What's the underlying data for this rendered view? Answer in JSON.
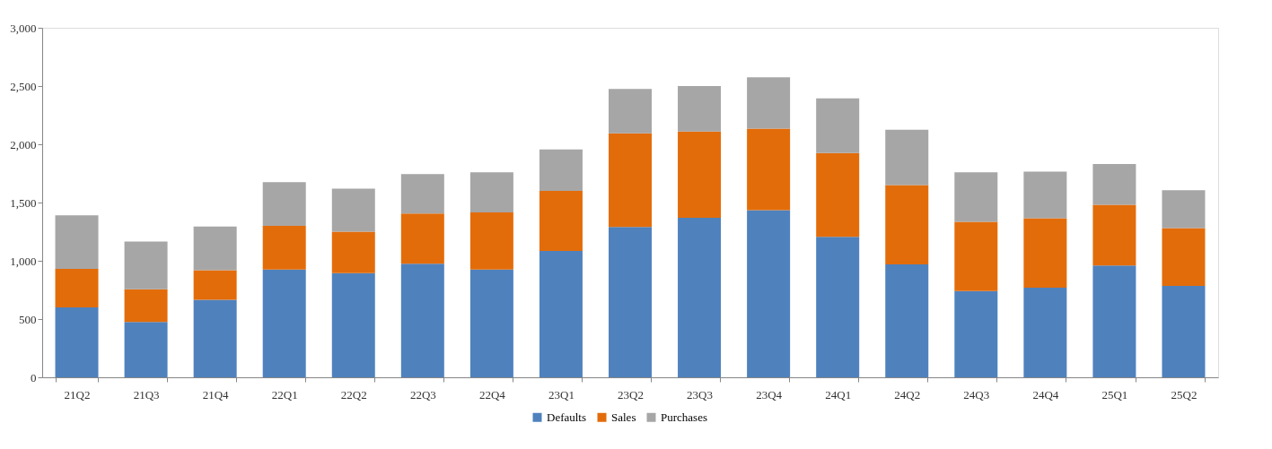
{
  "chart_data": {
    "type": "bar",
    "stacked": true,
    "categories": [
      "21Q2",
      "21Q3",
      "21Q4",
      "22Q1",
      "22Q2",
      "22Q3",
      "22Q4",
      "23Q1",
      "23Q2",
      "23Q3",
      "23Q4",
      "24Q1",
      "24Q2",
      "24Q3",
      "24Q4",
      "25Q1",
      "25Q2"
    ],
    "series": [
      {
        "name": "Defaults",
        "color": "#4f81bd",
        "values": [
          600,
          475,
          665,
          925,
          895,
          975,
          925,
          1085,
          1290,
          1370,
          1435,
          1205,
          970,
          740,
          770,
          960,
          785
        ]
      },
      {
        "name": "Sales",
        "color": "#e36c0a",
        "values": [
          330,
          280,
          255,
          375,
          355,
          430,
          490,
          515,
          805,
          740,
          700,
          720,
          680,
          595,
          595,
          520,
          495
        ]
      },
      {
        "name": "Purchases",
        "color": "#a6a6a6",
        "values": [
          460,
          410,
          375,
          375,
          370,
          340,
          345,
          355,
          380,
          390,
          440,
          470,
          475,
          425,
          400,
          350,
          325
        ]
      }
    ],
    "ylim": [
      0,
      3000
    ],
    "yticks": [
      0,
      500,
      {
        "value": 1000,
        "label": "1,000"
      },
      {
        "value": 1500,
        "label": "1,500"
      },
      {
        "value": 2000,
        "label": "2,000"
      },
      {
        "value": 2500,
        "label": "2,500"
      },
      {
        "value": 3000,
        "label": "3,000"
      }
    ],
    "grid": false,
    "legend": "bottom"
  }
}
